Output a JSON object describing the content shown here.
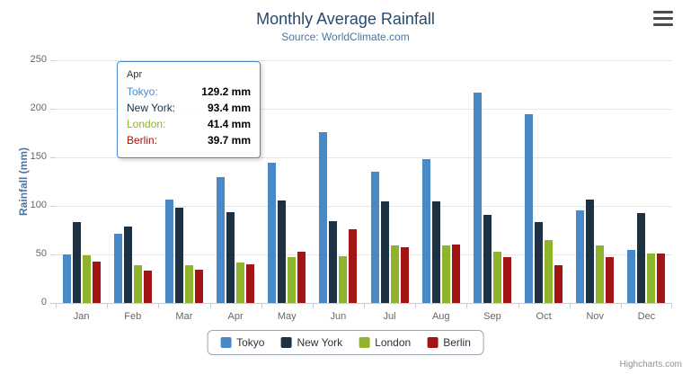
{
  "title": "Monthly Average Rainfall",
  "subtitle": "Source: WorldClimate.com",
  "credits": "Highcharts.com",
  "icons": {
    "export_menu": "≡"
  },
  "tooltip": {
    "header": "Apr",
    "border_color": "#4A89C7",
    "rows": [
      {
        "name": "Tokyo",
        "value": "129.2 mm"
      },
      {
        "name": "New York",
        "value": "93.4 mm"
      },
      {
        "name": "London",
        "value": "41.4 mm"
      },
      {
        "name": "Berlin",
        "value": "39.7 mm"
      }
    ]
  },
  "chart_data": {
    "type": "bar",
    "title": "Monthly Average Rainfall",
    "subtitle": "Source: WorldClimate.com",
    "xlabel": "",
    "ylabel": "Rainfall (mm)",
    "ylim": [
      0,
      250
    ],
    "ytick_interval": 50,
    "grid": true,
    "legend_position": "bottom",
    "categories": [
      "Jan",
      "Feb",
      "Mar",
      "Apr",
      "May",
      "Jun",
      "Jul",
      "Aug",
      "Sep",
      "Oct",
      "Nov",
      "Dec"
    ],
    "series": [
      {
        "name": "Tokyo",
        "color": "#4A89C7",
        "values": [
          49.9,
          71.5,
          106.4,
          129.2,
          144.0,
          176.0,
          135.6,
          148.5,
          216.4,
          194.1,
          95.6,
          54.4
        ]
      },
      {
        "name": "New York",
        "color": "#1C3144",
        "values": [
          83.6,
          78.8,
          98.5,
          93.4,
          106.0,
          84.5,
          105.0,
          104.3,
          91.2,
          83.5,
          106.6,
          92.3
        ]
      },
      {
        "name": "London",
        "color": "#8EB42C",
        "values": [
          48.9,
          38.8,
          39.3,
          41.4,
          47.0,
          48.3,
          59.0,
          59.6,
          52.4,
          65.2,
          59.3,
          51.2
        ]
      },
      {
        "name": "Berlin",
        "color": "#A31515",
        "values": [
          42.4,
          33.2,
          34.5,
          39.7,
          52.6,
          75.5,
          57.4,
          60.4,
          47.6,
          39.1,
          46.8,
          51.1
        ]
      }
    ]
  }
}
